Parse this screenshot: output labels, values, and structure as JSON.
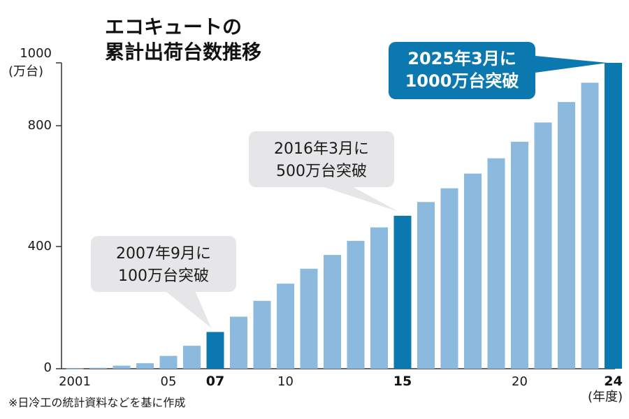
{
  "chart_data": {
    "type": "bar",
    "title": [
      "エコキュートの",
      "累計出荷台数推移"
    ],
    "ylabel": [
      "1000",
      "(万台)"
    ],
    "xlabel": "(年度)",
    "ylim": [
      0,
      1000
    ],
    "y_ticks": [
      "0",
      "400",
      "800"
    ],
    "categories": [
      "2001",
      "2002",
      "2003",
      "2004",
      "2005",
      "2006",
      "2007",
      "2008",
      "2009",
      "2010",
      "2011",
      "2012",
      "2013",
      "2014",
      "2015",
      "2016",
      "2017",
      "2018",
      "2019",
      "2020",
      "2021",
      "2022",
      "2023",
      "2024"
    ],
    "x_tick_labels": [
      {
        "label": "2001",
        "category": "2001",
        "bold": false
      },
      {
        "label": "05",
        "category": "2005",
        "bold": false
      },
      {
        "label": "07",
        "category": "2007",
        "bold": true
      },
      {
        "label": "10",
        "category": "2010",
        "bold": false
      },
      {
        "label": "15",
        "category": "2015",
        "bold": true
      },
      {
        "label": "20",
        "category": "2020",
        "bold": false
      },
      {
        "label": "24",
        "category": "2024",
        "bold": true
      }
    ],
    "values": [
      1,
      3,
      10,
      18,
      42,
      75,
      120,
      170,
      222,
      278,
      327,
      372,
      418,
      462,
      500,
      545,
      590,
      638,
      688,
      742,
      805,
      872,
      935,
      1000
    ],
    "highlight": [
      "2007",
      "2015",
      "2024"
    ],
    "colors": {
      "bar": "#8cbade",
      "highlight": "#0b78b0",
      "callout": "#e6e6e8",
      "callout_final": "#0b78b0",
      "axis": "#333333"
    },
    "annotations": [
      {
        "category": "2007",
        "lines": [
          "2007年9月に",
          "100万台突破"
        ],
        "style": "gray"
      },
      {
        "category": "2015",
        "lines": [
          "2016年3月に",
          "500万台突破"
        ],
        "style": "gray"
      },
      {
        "category": "2024",
        "lines": [
          "2025年3月に",
          "1000万台突破"
        ],
        "style": "blue"
      }
    ],
    "note": "※日冷工の統計資料などを基に作成"
  }
}
